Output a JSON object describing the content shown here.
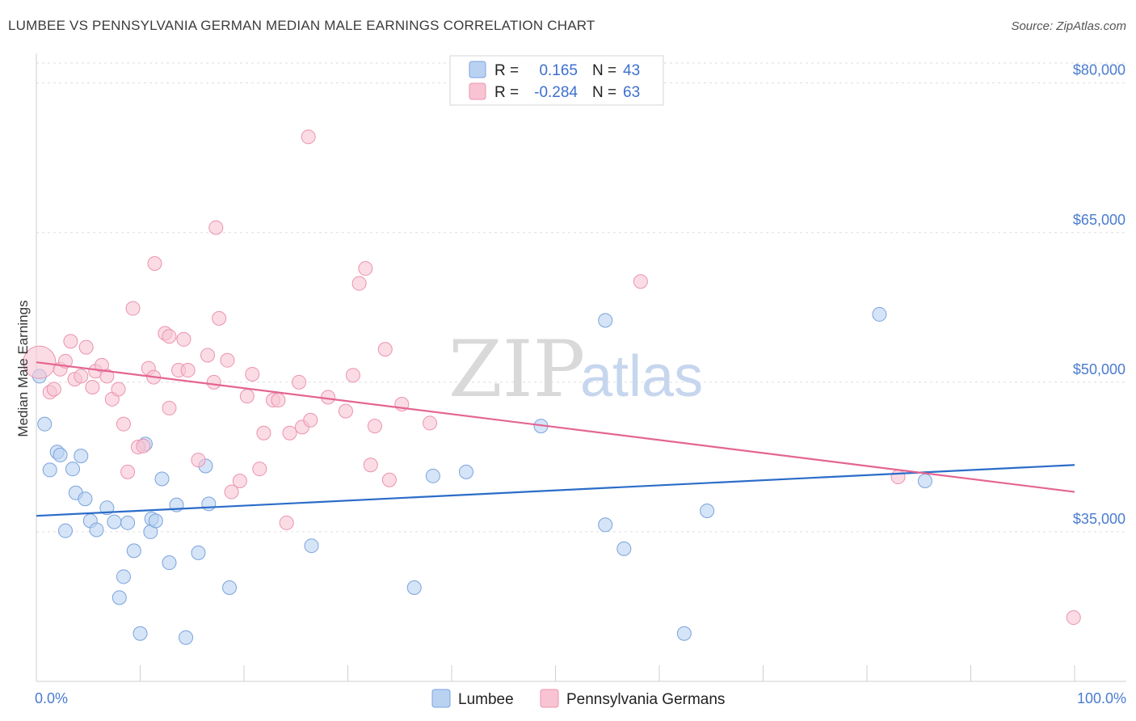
{
  "header": {
    "title": "LUMBEE VS PENNSYLVANIA GERMAN MEDIAN MALE EARNINGS CORRELATION CHART",
    "source": "Source: ZipAtlas.com"
  },
  "watermark": {
    "zip": "ZIP",
    "atlas": "atlas"
  },
  "colors": {
    "lumbee_fill": "#b9d2f2",
    "lumbee_stroke": "#7aa3dd",
    "lumbee_line": "#2b6cc9",
    "pg_fill": "#f8c4d3",
    "pg_stroke": "#eb93ae",
    "pg_line": "#e46592",
    "axis_text": "#4a7bd0",
    "grid": "#dddddd"
  },
  "legend": {
    "rows": [
      {
        "r_label": "R =",
        "r_value": "0.165",
        "n_label": "N =",
        "n_value": "43"
      },
      {
        "r_label": "R =",
        "r_value": "-0.284",
        "n_label": "N =",
        "n_value": "63"
      }
    ]
  },
  "chart_data": {
    "type": "scatter",
    "title": "LUMBEE VS PENNSYLVANIA GERMAN MEDIAN MALE EARNINGS CORRELATION CHART",
    "xlabel": "",
    "ylabel": "Median Male Earnings",
    "xlim": [
      0,
      100
    ],
    "ylim": [
      20000,
      82000
    ],
    "x_tick_labels": [
      "0.0%",
      "100.0%"
    ],
    "y_ticks": [
      35000,
      50000,
      65000,
      80000
    ],
    "y_tick_labels": [
      "$35,000",
      "$50,000",
      "$65,000",
      "$80,000"
    ],
    "grid": true,
    "legend_position": "top-center",
    "series": [
      {
        "name": "Lumbee",
        "r": 0.165,
        "n": 43,
        "trend": {
          "x": [
            0,
            100
          ],
          "y": [
            36600,
            41700
          ]
        },
        "points": [
          [
            0.3,
            50600
          ],
          [
            0.8,
            45800
          ],
          [
            1.3,
            41200
          ],
          [
            2.0,
            43000
          ],
          [
            2.3,
            42700
          ],
          [
            2.8,
            35100
          ],
          [
            3.5,
            41300
          ],
          [
            3.8,
            38900
          ],
          [
            4.3,
            42600
          ],
          [
            4.7,
            38300
          ],
          [
            5.2,
            36100
          ],
          [
            5.8,
            35200
          ],
          [
            6.8,
            37400
          ],
          [
            7.5,
            36000
          ],
          [
            8.0,
            28400
          ],
          [
            8.4,
            30500
          ],
          [
            8.8,
            35900
          ],
          [
            9.4,
            33100
          ],
          [
            10.0,
            24800
          ],
          [
            10.5,
            43800
          ],
          [
            11.0,
            35000
          ],
          [
            11.1,
            36300
          ],
          [
            11.5,
            36100
          ],
          [
            12.1,
            40300
          ],
          [
            12.8,
            31900
          ],
          [
            13.5,
            37700
          ],
          [
            14.4,
            24400
          ],
          [
            15.6,
            32900
          ],
          [
            16.3,
            41600
          ],
          [
            16.6,
            37800
          ],
          [
            18.6,
            29400
          ],
          [
            26.5,
            33600
          ],
          [
            36.4,
            29400
          ],
          [
            38.2,
            40600
          ],
          [
            41.4,
            41000
          ],
          [
            48.6,
            45600
          ],
          [
            54.8,
            56200
          ],
          [
            54.8,
            35700
          ],
          [
            56.6,
            33300
          ],
          [
            62.4,
            24800
          ],
          [
            64.6,
            37100
          ],
          [
            81.2,
            56800
          ],
          [
            85.6,
            40100
          ]
        ]
      },
      {
        "name": "Pennsylvania Germans",
        "r": -0.284,
        "n": 63,
        "trend": {
          "x": [
            0,
            100
          ],
          "y": [
            52000,
            39000
          ]
        },
        "points": [
          [
            0.3,
            52000
          ],
          [
            1.3,
            49000
          ],
          [
            1.7,
            49300
          ],
          [
            2.3,
            51300
          ],
          [
            2.8,
            52100
          ],
          [
            3.3,
            54100
          ],
          [
            3.7,
            50300
          ],
          [
            4.3,
            50600
          ],
          [
            4.8,
            53500
          ],
          [
            5.4,
            49500
          ],
          [
            5.7,
            51100
          ],
          [
            6.3,
            51700
          ],
          [
            6.8,
            50600
          ],
          [
            7.3,
            48300
          ],
          [
            7.9,
            49300
          ],
          [
            8.4,
            45800
          ],
          [
            8.8,
            41000
          ],
          [
            9.3,
            57400
          ],
          [
            9.8,
            43500
          ],
          [
            10.3,
            43600
          ],
          [
            10.8,
            51400
          ],
          [
            11.3,
            50500
          ],
          [
            11.4,
            61900
          ],
          [
            12.8,
            47400
          ],
          [
            12.4,
            54900
          ],
          [
            12.8,
            54600
          ],
          [
            13.7,
            51200
          ],
          [
            14.2,
            54300
          ],
          [
            14.6,
            51200
          ],
          [
            15.6,
            42200
          ],
          [
            16.5,
            52700
          ],
          [
            17.1,
            50000
          ],
          [
            17.3,
            65500
          ],
          [
            17.6,
            56400
          ],
          [
            18.4,
            52200
          ],
          [
            18.8,
            39000
          ],
          [
            19.6,
            40100
          ],
          [
            20.3,
            48600
          ],
          [
            20.8,
            50800
          ],
          [
            21.5,
            41300
          ],
          [
            21.9,
            44900
          ],
          [
            22.8,
            48200
          ],
          [
            23.3,
            48200
          ],
          [
            24.1,
            35900
          ],
          [
            24.4,
            44900
          ],
          [
            25.3,
            50000
          ],
          [
            25.6,
            45500
          ],
          [
            26.2,
            74600
          ],
          [
            26.4,
            46200
          ],
          [
            28.1,
            48500
          ],
          [
            29.8,
            47100
          ],
          [
            30.5,
            50700
          ],
          [
            31.1,
            59900
          ],
          [
            31.7,
            61400
          ],
          [
            32.2,
            41700
          ],
          [
            32.6,
            45600
          ],
          [
            33.6,
            53300
          ],
          [
            34.0,
            40200
          ],
          [
            35.2,
            47800
          ],
          [
            37.9,
            45900
          ],
          [
            58.2,
            60100
          ],
          [
            83.0,
            40500
          ],
          [
            99.9,
            26400
          ]
        ]
      }
    ]
  }
}
